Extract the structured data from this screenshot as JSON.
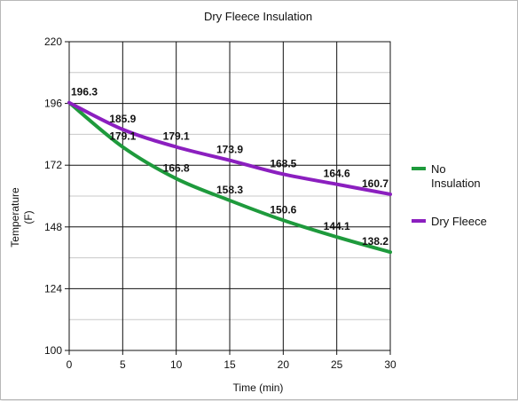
{
  "chart_data": {
    "type": "line",
    "title": "Dry Fleece Insulation",
    "xlabel": "Time (min)",
    "ylabel": [
      "Temperature",
      "(F)"
    ],
    "x": [
      0,
      5,
      10,
      15,
      20,
      25,
      30
    ],
    "xlim": [
      0,
      30
    ],
    "ylim": [
      100,
      220
    ],
    "yticks": [
      100,
      124,
      148,
      172,
      196,
      220
    ],
    "xticks": [
      0,
      5,
      10,
      15,
      20,
      25,
      30
    ],
    "grid": true,
    "legend": "right",
    "series": [
      {
        "name": "No Insulation",
        "name_lines": [
          "No",
          "Insulation"
        ],
        "color": "#1e9a3c",
        "values": [
          196.3,
          179.1,
          166.8,
          158.3,
          150.6,
          144.1,
          138.2
        ],
        "labels": [
          "",
          "179.1",
          "166.8",
          "158.3",
          "150.6",
          "144.1",
          "138.2"
        ]
      },
      {
        "name": "Dry Fleece",
        "name_lines": [
          "Dry Fleece"
        ],
        "color": "#8b1fbf",
        "values": [
          196.3,
          185.9,
          179.1,
          173.9,
          168.5,
          164.6,
          160.7
        ],
        "labels": [
          "196.3",
          "185.9",
          "179.1",
          "173.9",
          "168.5",
          "164.6",
          "160.7"
        ]
      }
    ]
  }
}
